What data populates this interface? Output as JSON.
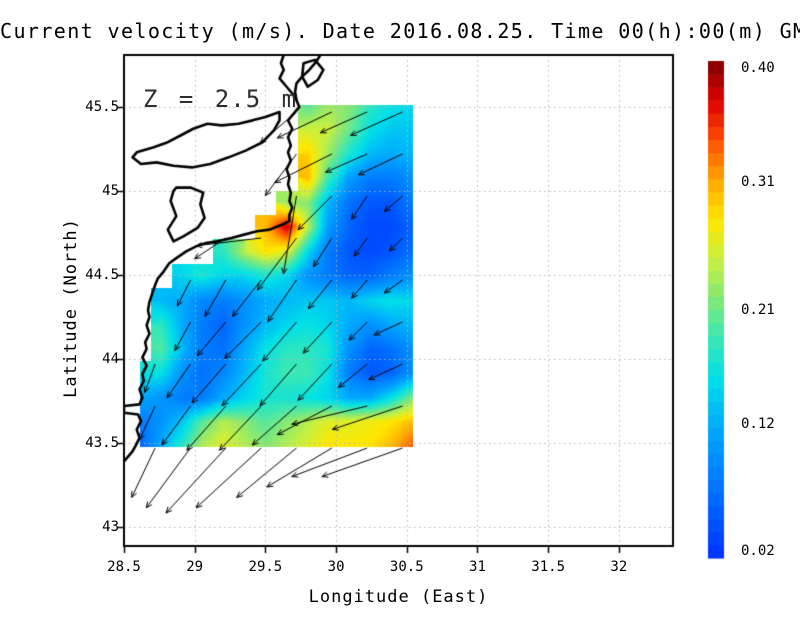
{
  "title": "Current velocity (m/s). Date 2016.08.25. Time 00(h):00(m) GMT",
  "annotations": {
    "depth_label": "Z = 2.5 m"
  },
  "axes": {
    "xlabel": "Longitude (East)",
    "ylabel": "Latitude (North)",
    "x_ticks": [
      "28.5",
      "29",
      "29.5",
      "30",
      "30.5",
      "31",
      "31.5",
      "32"
    ],
    "x_tick_values": [
      28.5,
      29,
      29.5,
      30,
      30.5,
      31,
      31.5,
      32
    ],
    "y_ticks": [
      "45.5",
      "45",
      "44.5",
      "44",
      "43.5",
      "43"
    ],
    "y_tick_values": [
      45.5,
      45,
      44.5,
      44,
      43.5,
      43
    ],
    "x_range": [
      28.5,
      32.383
    ],
    "y_range": [
      42.887,
      45.809
    ],
    "grid": "dotted"
  },
  "colorbar": {
    "min": 0.02,
    "max": 0.4,
    "labels": [
      {
        "text": "0.40",
        "value": 0.4
      },
      {
        "text": "0.31",
        "value": 0.31
      },
      {
        "text": "0.21",
        "value": 0.21
      },
      {
        "text": "0.12",
        "value": 0.12
      },
      {
        "text": "0.02",
        "value": 0.02
      }
    ],
    "colormap_stops": [
      [
        0.0,
        "#0030ff"
      ],
      [
        0.13,
        "#0070ff"
      ],
      [
        0.26,
        "#00a8ff"
      ],
      [
        0.36,
        "#00e0e8"
      ],
      [
        0.45,
        "#40e8b0"
      ],
      [
        0.52,
        "#80e878"
      ],
      [
        0.6,
        "#c8f040"
      ],
      [
        0.68,
        "#ffe800"
      ],
      [
        0.76,
        "#ffa800"
      ],
      [
        0.84,
        "#ff5000"
      ],
      [
        0.92,
        "#e00000"
      ],
      [
        1.0,
        "#800000"
      ]
    ]
  },
  "chart_data": {
    "type": "heatmap",
    "subtype": "current-velocity-field-with-quiver",
    "units": "m/s",
    "title": "Current velocity (m/s). Date 2016.08.25. Time 00(h):00(m) GMT",
    "xlabel": "Longitude (East)",
    "ylabel": "Latitude (North)",
    "grid_lons": [
      28.61,
      28.76,
      28.91,
      29.05,
      29.2,
      29.35,
      29.5,
      29.65,
      29.8,
      29.94,
      30.09,
      30.24,
      30.39,
      30.54
    ],
    "grid_lats": [
      45.51,
      45.37,
      45.22,
      45.08,
      44.93,
      44.79,
      44.64,
      44.5,
      44.35,
      44.21,
      44.06,
      43.92,
      43.77,
      43.63,
      43.48
    ],
    "speed": [
      [
        null,
        null,
        null,
        null,
        null,
        null,
        null,
        null,
        0.2,
        0.23,
        0.22,
        0.18,
        0.16,
        0.15
      ],
      [
        null,
        null,
        null,
        null,
        null,
        null,
        null,
        null,
        0.25,
        0.25,
        0.21,
        0.16,
        0.14,
        0.14
      ],
      [
        null,
        null,
        null,
        null,
        null,
        null,
        null,
        null,
        0.29,
        0.23,
        0.17,
        0.13,
        0.12,
        0.13
      ],
      [
        null,
        null,
        null,
        null,
        null,
        null,
        null,
        null,
        0.3,
        0.19,
        0.11,
        0.08,
        0.08,
        0.1
      ],
      [
        null,
        null,
        null,
        null,
        null,
        null,
        null,
        0.23,
        0.22,
        0.13,
        0.07,
        0.05,
        0.05,
        0.08
      ],
      [
        null,
        null,
        null,
        null,
        null,
        null,
        0.3,
        0.38,
        0.24,
        0.11,
        0.06,
        0.04,
        0.04,
        0.06
      ],
      [
        null,
        null,
        null,
        null,
        0.18,
        0.24,
        0.28,
        0.26,
        0.15,
        0.08,
        0.05,
        0.04,
        0.05,
        0.07
      ],
      [
        null,
        null,
        0.15,
        0.17,
        0.15,
        0.15,
        0.17,
        0.15,
        0.1,
        0.08,
        0.06,
        0.06,
        0.08,
        0.1
      ],
      [
        null,
        0.13,
        0.12,
        0.09,
        0.08,
        0.1,
        0.12,
        0.13,
        0.14,
        0.14,
        0.13,
        0.15,
        0.16,
        0.15
      ],
      [
        null,
        0.18,
        0.12,
        0.08,
        0.06,
        0.1,
        0.13,
        0.15,
        0.16,
        0.15,
        0.12,
        0.1,
        0.12,
        0.13
      ],
      [
        null,
        0.2,
        0.13,
        0.08,
        0.07,
        0.12,
        0.16,
        0.18,
        0.18,
        0.17,
        0.1,
        0.06,
        0.07,
        0.1
      ],
      [
        0.16,
        0.16,
        0.1,
        0.07,
        0.09,
        0.13,
        0.17,
        0.19,
        0.19,
        0.16,
        0.08,
        0.05,
        0.06,
        0.1
      ],
      [
        0.12,
        0.1,
        0.08,
        0.08,
        0.12,
        0.15,
        0.17,
        0.17,
        0.16,
        0.15,
        0.12,
        0.12,
        0.16,
        0.22
      ],
      [
        0.08,
        0.1,
        0.14,
        0.2,
        0.24,
        0.22,
        0.2,
        0.22,
        0.24,
        0.26,
        0.26,
        0.27,
        0.28,
        0.3
      ],
      [
        0.06,
        0.12,
        0.18,
        0.24,
        0.26,
        0.24,
        0.22,
        0.24,
        0.26,
        0.28,
        0.28,
        0.28,
        0.3,
        0.34
      ]
    ],
    "arrows": [
      [
        29.72,
        45.47,
        -0.14,
        -0.12
      ],
      [
        29.97,
        45.47,
        -0.21,
        -0.1
      ],
      [
        30.22,
        45.47,
        -0.18,
        -0.08
      ],
      [
        30.47,
        45.47,
        -0.2,
        -0.09
      ],
      [
        29.72,
        45.22,
        -0.12,
        -0.16
      ],
      [
        29.97,
        45.22,
        -0.22,
        -0.11
      ],
      [
        30.22,
        45.22,
        -0.16,
        -0.07
      ],
      [
        30.47,
        45.22,
        -0.17,
        -0.08
      ],
      [
        29.72,
        44.97,
        -0.05,
        -0.3
      ],
      [
        29.97,
        44.97,
        -0.13,
        -0.13
      ],
      [
        30.22,
        44.97,
        -0.06,
        -0.09
      ],
      [
        30.47,
        44.97,
        -0.07,
        -0.06
      ],
      [
        29.22,
        44.72,
        -0.12,
        -0.08
      ],
      [
        29.47,
        44.72,
        -0.25,
        -0.03
      ],
      [
        29.72,
        44.72,
        -0.15,
        -0.2
      ],
      [
        29.97,
        44.72,
        -0.07,
        -0.11
      ],
      [
        30.22,
        44.72,
        -0.05,
        -0.07
      ],
      [
        30.47,
        44.72,
        -0.05,
        -0.05
      ],
      [
        28.97,
        44.47,
        -0.05,
        -0.1
      ],
      [
        29.22,
        44.47,
        -0.08,
        -0.14
      ],
      [
        29.47,
        44.47,
        -0.11,
        -0.14
      ],
      [
        29.72,
        44.47,
        -0.11,
        -0.16
      ],
      [
        29.97,
        44.47,
        -0.09,
        -0.11
      ],
      [
        30.22,
        44.47,
        -0.06,
        -0.07
      ],
      [
        30.47,
        44.47,
        -0.07,
        -0.05
      ],
      [
        28.97,
        44.22,
        -0.06,
        -0.11
      ],
      [
        29.22,
        44.22,
        -0.11,
        -0.13
      ],
      [
        29.47,
        44.22,
        -0.14,
        -0.14
      ],
      [
        29.72,
        44.22,
        -0.13,
        -0.15
      ],
      [
        29.97,
        44.22,
        -0.11,
        -0.12
      ],
      [
        30.22,
        44.22,
        -0.07,
        -0.07
      ],
      [
        30.47,
        44.22,
        -0.11,
        -0.05
      ],
      [
        28.72,
        43.97,
        -0.04,
        -0.11
      ],
      [
        28.97,
        43.97,
        -0.09,
        -0.13
      ],
      [
        29.22,
        43.97,
        -0.13,
        -0.15
      ],
      [
        29.47,
        43.97,
        -0.15,
        -0.16
      ],
      [
        29.72,
        43.97,
        -0.14,
        -0.16
      ],
      [
        29.97,
        43.97,
        -0.13,
        -0.14
      ],
      [
        30.22,
        43.97,
        -0.11,
        -0.09
      ],
      [
        30.47,
        43.97,
        -0.13,
        -0.06
      ],
      [
        28.72,
        43.72,
        -0.06,
        -0.13
      ],
      [
        28.97,
        43.72,
        -0.11,
        -0.15
      ],
      [
        29.22,
        43.72,
        -0.15,
        -0.17
      ],
      [
        29.47,
        43.72,
        -0.16,
        -0.17
      ],
      [
        29.72,
        43.72,
        -0.17,
        -0.15
      ],
      [
        29.97,
        43.72,
        -0.21,
        -0.11
      ],
      [
        30.22,
        43.72,
        -0.29,
        -0.07
      ],
      [
        30.47,
        43.72,
        -0.27,
        -0.09
      ],
      [
        28.72,
        43.47,
        -0.09,
        -0.19
      ],
      [
        28.97,
        43.47,
        -0.17,
        -0.23
      ],
      [
        29.22,
        43.47,
        -0.23,
        -0.25
      ],
      [
        29.47,
        43.47,
        -0.25,
        -0.23
      ],
      [
        29.72,
        43.47,
        -0.23,
        -0.19
      ],
      [
        29.97,
        43.47,
        -0.25,
        -0.15
      ],
      [
        30.22,
        43.47,
        -0.29,
        -0.11
      ],
      [
        30.47,
        43.47,
        -0.31,
        -0.11
      ]
    ],
    "coastline": {
      "open": [
        [
          [
            29.63,
            45.81
          ],
          [
            29.61,
            45.76
          ],
          [
            29.63,
            45.72
          ],
          [
            29.6,
            45.67
          ],
          [
            29.65,
            45.62
          ],
          [
            29.69,
            45.58
          ],
          [
            29.72,
            45.54
          ],
          [
            29.74,
            45.5
          ],
          [
            29.7,
            45.46
          ],
          [
            29.66,
            45.42
          ],
          [
            29.69,
            45.37
          ],
          [
            29.66,
            45.32
          ],
          [
            29.68,
            45.27
          ],
          [
            29.66,
            45.23
          ],
          [
            29.68,
            45.18
          ],
          [
            29.65,
            45.13
          ],
          [
            29.67,
            45.08
          ],
          [
            29.66,
            45.04
          ],
          [
            29.68,
            44.99
          ],
          [
            29.67,
            44.94
          ],
          [
            29.69,
            44.9
          ],
          [
            29.67,
            44.86
          ],
          [
            29.67,
            44.82
          ],
          [
            29.62,
            44.8
          ],
          [
            29.53,
            44.77
          ],
          [
            29.44,
            44.76
          ],
          [
            29.35,
            44.74
          ],
          [
            29.26,
            44.72
          ],
          [
            29.16,
            44.7
          ],
          [
            29.08,
            44.69
          ],
          [
            29.01,
            44.67
          ],
          [
            28.94,
            44.64
          ],
          [
            28.87,
            44.6
          ],
          [
            28.82,
            44.57
          ],
          [
            28.78,
            44.52
          ],
          [
            28.74,
            44.48
          ],
          [
            28.72,
            44.44
          ],
          [
            28.7,
            44.39
          ],
          [
            28.68,
            44.34
          ],
          [
            28.67,
            44.29
          ],
          [
            28.68,
            44.25
          ],
          [
            28.66,
            44.2
          ],
          [
            28.68,
            44.15
          ],
          [
            28.65,
            44.1
          ],
          [
            28.66,
            44.06
          ],
          [
            28.63,
            44.01
          ],
          [
            28.66,
            43.96
          ],
          [
            28.63,
            43.91
          ],
          [
            28.64,
            43.87
          ],
          [
            28.61,
            43.82
          ],
          [
            28.63,
            43.77
          ],
          [
            28.61,
            43.73
          ],
          [
            28.5,
            43.72
          ],
          [
            28.5,
            43.68
          ],
          [
            28.6,
            43.67
          ],
          [
            28.62,
            43.63
          ],
          [
            28.59,
            43.58
          ],
          [
            28.61,
            43.53
          ],
          [
            28.58,
            43.48
          ],
          [
            28.56,
            43.45
          ],
          [
            28.53,
            43.42
          ],
          [
            28.5,
            43.39
          ]
        ],
        [
          [
            29.89,
            45.81
          ],
          [
            29.86,
            45.77
          ],
          [
            29.81,
            45.72
          ],
          [
            29.76,
            45.68
          ],
          [
            29.72,
            45.64
          ],
          [
            29.71,
            45.59
          ],
          [
            29.72,
            45.54
          ]
        ]
      ],
      "closed": [
        [
          [
            29.77,
            45.76
          ],
          [
            29.85,
            45.78
          ],
          [
            29.91,
            45.72
          ],
          [
            29.87,
            45.66
          ],
          [
            29.8,
            45.62
          ],
          [
            29.76,
            45.68
          ]
        ],
        [
          [
            29.6,
            45.47
          ],
          [
            29.5,
            45.44
          ],
          [
            29.41,
            45.42
          ],
          [
            29.31,
            45.4
          ],
          [
            29.19,
            45.39
          ],
          [
            29.09,
            45.4
          ],
          [
            28.99,
            45.37
          ],
          [
            28.9,
            45.33
          ],
          [
            28.81,
            45.29
          ],
          [
            28.71,
            45.26
          ],
          [
            28.59,
            45.23
          ],
          [
            28.56,
            45.2
          ],
          [
            28.62,
            45.16
          ],
          [
            28.73,
            45.17
          ],
          [
            28.85,
            45.15
          ],
          [
            28.98,
            45.14
          ],
          [
            29.11,
            45.16
          ],
          [
            29.24,
            45.2
          ],
          [
            29.36,
            45.24
          ],
          [
            29.48,
            45.29
          ],
          [
            29.56,
            45.36
          ],
          [
            29.6,
            45.42
          ]
        ],
        [
          [
            28.87,
            45.02
          ],
          [
            28.97,
            45.02
          ],
          [
            29.06,
            44.99
          ],
          [
            29.04,
            44.92
          ],
          [
            29.07,
            44.84
          ],
          [
            29.02,
            44.78
          ],
          [
            28.92,
            44.73
          ],
          [
            28.85,
            44.7
          ],
          [
            28.81,
            44.77
          ],
          [
            28.87,
            44.85
          ],
          [
            28.83,
            44.94
          ],
          [
            28.85,
            45.0
          ]
        ]
      ]
    }
  }
}
